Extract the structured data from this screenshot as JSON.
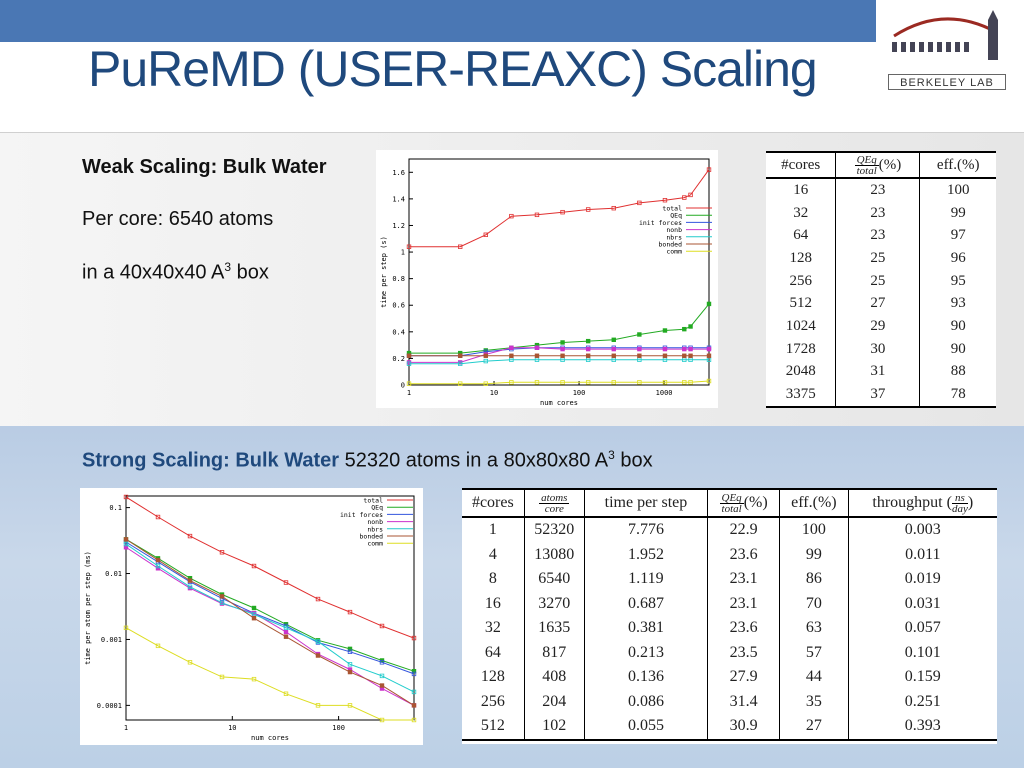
{
  "header": {
    "title": "PuReMD (USER-REAXC) Scaling",
    "logo_text": "BERKELEY LAB",
    "bar_color": "#4a77b4",
    "title_color": "#1f497d"
  },
  "weak": {
    "heading": "Weak Scaling: Bulk Water",
    "line1": "Per core: 6540 atoms",
    "line3_prefix": "in a 40x40x40 A",
    "line3_sup": "3",
    "line3_suffix": " box",
    "table": {
      "headers": [
        "#cores",
        "QEq",
        "total",
        "(%)",
        "eff.(%)"
      ],
      "rows": [
        [
          "16",
          "23",
          "100"
        ],
        [
          "32",
          "23",
          "99"
        ],
        [
          "64",
          "23",
          "97"
        ],
        [
          "128",
          "25",
          "96"
        ],
        [
          "256",
          "25",
          "95"
        ],
        [
          "512",
          "27",
          "93"
        ],
        [
          "1024",
          "29",
          "90"
        ],
        [
          "1728",
          "30",
          "90"
        ],
        [
          "2048",
          "31",
          "88"
        ],
        [
          "3375",
          "37",
          "78"
        ]
      ]
    }
  },
  "strong": {
    "heading": "Strong Scaling: Bulk Water",
    "desc": " 52320 atoms in a 80x80x80 A",
    "sup": "3",
    "suffix": " box",
    "table": {
      "h_cores": "#cores",
      "h_atoms": "atoms",
      "h_core": "core",
      "h_time": "time per step",
      "h_qeq": "QEq",
      "h_total": "total",
      "h_pct": "(%)",
      "h_eff": "eff.(%)",
      "h_thr": "throughput",
      "h_ns": "ns",
      "h_day": "day",
      "rows": [
        [
          "1",
          "52320",
          "7.776",
          "22.9",
          "100",
          "0.003"
        ],
        [
          "4",
          "13080",
          "1.952",
          "23.6",
          "99",
          "0.011"
        ],
        [
          "8",
          "6540",
          "1.119",
          "23.1",
          "86",
          "0.019"
        ],
        [
          "16",
          "3270",
          "0.687",
          "23.1",
          "70",
          "0.031"
        ],
        [
          "32",
          "1635",
          "0.381",
          "23.6",
          "63",
          "0.057"
        ],
        [
          "64",
          "817",
          "0.213",
          "23.5",
          "57",
          "0.101"
        ],
        [
          "128",
          "408",
          "0.136",
          "27.9",
          "44",
          "0.159"
        ],
        [
          "256",
          "204",
          "0.086",
          "31.4",
          "35",
          "0.251"
        ],
        [
          "512",
          "102",
          "0.055",
          "30.9",
          "27",
          "0.393"
        ]
      ]
    }
  },
  "chart_data": [
    {
      "type": "line",
      "xlabel": "num cores",
      "ylabel": "time per step (s)",
      "x_scale": "log",
      "xlim": [
        1,
        3375
      ],
      "ylim": [
        0,
        1.7
      ],
      "x_ticks": [
        "1",
        "10",
        "100",
        "1000"
      ],
      "y_ticks": [
        "0",
        "0.2",
        "0.4",
        "0.6",
        "0.8",
        "1",
        "1.2",
        "1.4",
        "1.6"
      ],
      "legend_position": "top-right",
      "x": [
        1,
        4,
        8,
        16,
        32,
        64,
        128,
        256,
        512,
        1024,
        1728,
        2048,
        3375
      ],
      "series": [
        {
          "name": "total",
          "color": "#e03030",
          "values": [
            1.04,
            1.04,
            1.13,
            1.27,
            1.28,
            1.3,
            1.32,
            1.33,
            1.37,
            1.39,
            1.41,
            1.43,
            1.62
          ]
        },
        {
          "name": "QEq",
          "color": "#22aa22",
          "values": [
            0.24,
            0.24,
            0.26,
            0.28,
            0.3,
            0.32,
            0.33,
            0.34,
            0.38,
            0.41,
            0.42,
            0.44,
            0.61
          ]
        },
        {
          "name": "init forces",
          "color": "#3355dd",
          "values": [
            0.22,
            0.22,
            0.25,
            0.27,
            0.28,
            0.28,
            0.28,
            0.28,
            0.28,
            0.28,
            0.28,
            0.28,
            0.28
          ]
        },
        {
          "name": "nonb",
          "color": "#cc33cc",
          "values": [
            0.17,
            0.17,
            0.23,
            0.28,
            0.28,
            0.27,
            0.27,
            0.27,
            0.27,
            0.27,
            0.27,
            0.27,
            0.27
          ]
        },
        {
          "name": "nbrs",
          "color": "#22cccc",
          "values": [
            0.16,
            0.16,
            0.18,
            0.19,
            0.19,
            0.19,
            0.19,
            0.19,
            0.19,
            0.19,
            0.19,
            0.19,
            0.19
          ]
        },
        {
          "name": "bonded",
          "color": "#aa5533",
          "values": [
            0.22,
            0.22,
            0.22,
            0.22,
            0.22,
            0.22,
            0.22,
            0.22,
            0.22,
            0.22,
            0.22,
            0.22,
            0.22
          ]
        },
        {
          "name": "comm",
          "color": "#dddd22",
          "values": [
            0.01,
            0.01,
            0.01,
            0.02,
            0.02,
            0.02,
            0.02,
            0.02,
            0.02,
            0.02,
            0.02,
            0.02,
            0.03
          ]
        }
      ]
    },
    {
      "type": "line",
      "xlabel": "num cores",
      "ylabel": "time per atom per step (ms)",
      "x_scale": "log",
      "y_scale": "log",
      "xlim": [
        1,
        512
      ],
      "ylim": [
        6e-05,
        0.15
      ],
      "x_ticks": [
        "1",
        "10",
        "100"
      ],
      "y_ticks": [
        "0.0001",
        "0.001",
        "0.01",
        "0.1"
      ],
      "legend_position": "top-right",
      "x": [
        1,
        2,
        4,
        8,
        16,
        32,
        64,
        128,
        256,
        512
      ],
      "series": [
        {
          "name": "total",
          "color": "#e03030",
          "values": [
            0.145,
            0.072,
            0.037,
            0.021,
            0.013,
            0.0073,
            0.0041,
            0.0026,
            0.0016,
            0.00105
          ]
        },
        {
          "name": "QEq",
          "color": "#22aa22",
          "values": [
            0.033,
            0.017,
            0.0085,
            0.0048,
            0.003,
            0.0017,
            0.00097,
            0.00072,
            0.00048,
            0.00033
          ]
        },
        {
          "name": "init forces",
          "color": "#3355dd",
          "values": [
            0.03,
            0.015,
            0.0075,
            0.0042,
            0.0025,
            0.0016,
            0.0009,
            0.00065,
            0.00045,
            0.0003
          ]
        },
        {
          "name": "nonb",
          "color": "#cc33cc",
          "values": [
            0.025,
            0.012,
            0.006,
            0.0035,
            0.0025,
            0.0013,
            0.0006,
            0.00035,
            0.00018,
            0.0001
          ]
        },
        {
          "name": "nbrs",
          "color": "#22cccc",
          "values": [
            0.028,
            0.013,
            0.0063,
            0.0036,
            0.0024,
            0.0015,
            0.00093,
            0.00042,
            0.00028,
            0.00016
          ]
        },
        {
          "name": "bonded",
          "color": "#aa5533",
          "values": [
            0.033,
            0.016,
            0.0078,
            0.0045,
            0.0021,
            0.0011,
            0.00057,
            0.00032,
            0.0002,
            0.0001
          ]
        },
        {
          "name": "comm",
          "color": "#dddd22",
          "values": [
            0.0015,
            0.0008,
            0.00045,
            0.00027,
            0.00025,
            0.00015,
            0.0001,
            0.0001,
            6e-05,
            6e-05
          ]
        }
      ]
    }
  ]
}
